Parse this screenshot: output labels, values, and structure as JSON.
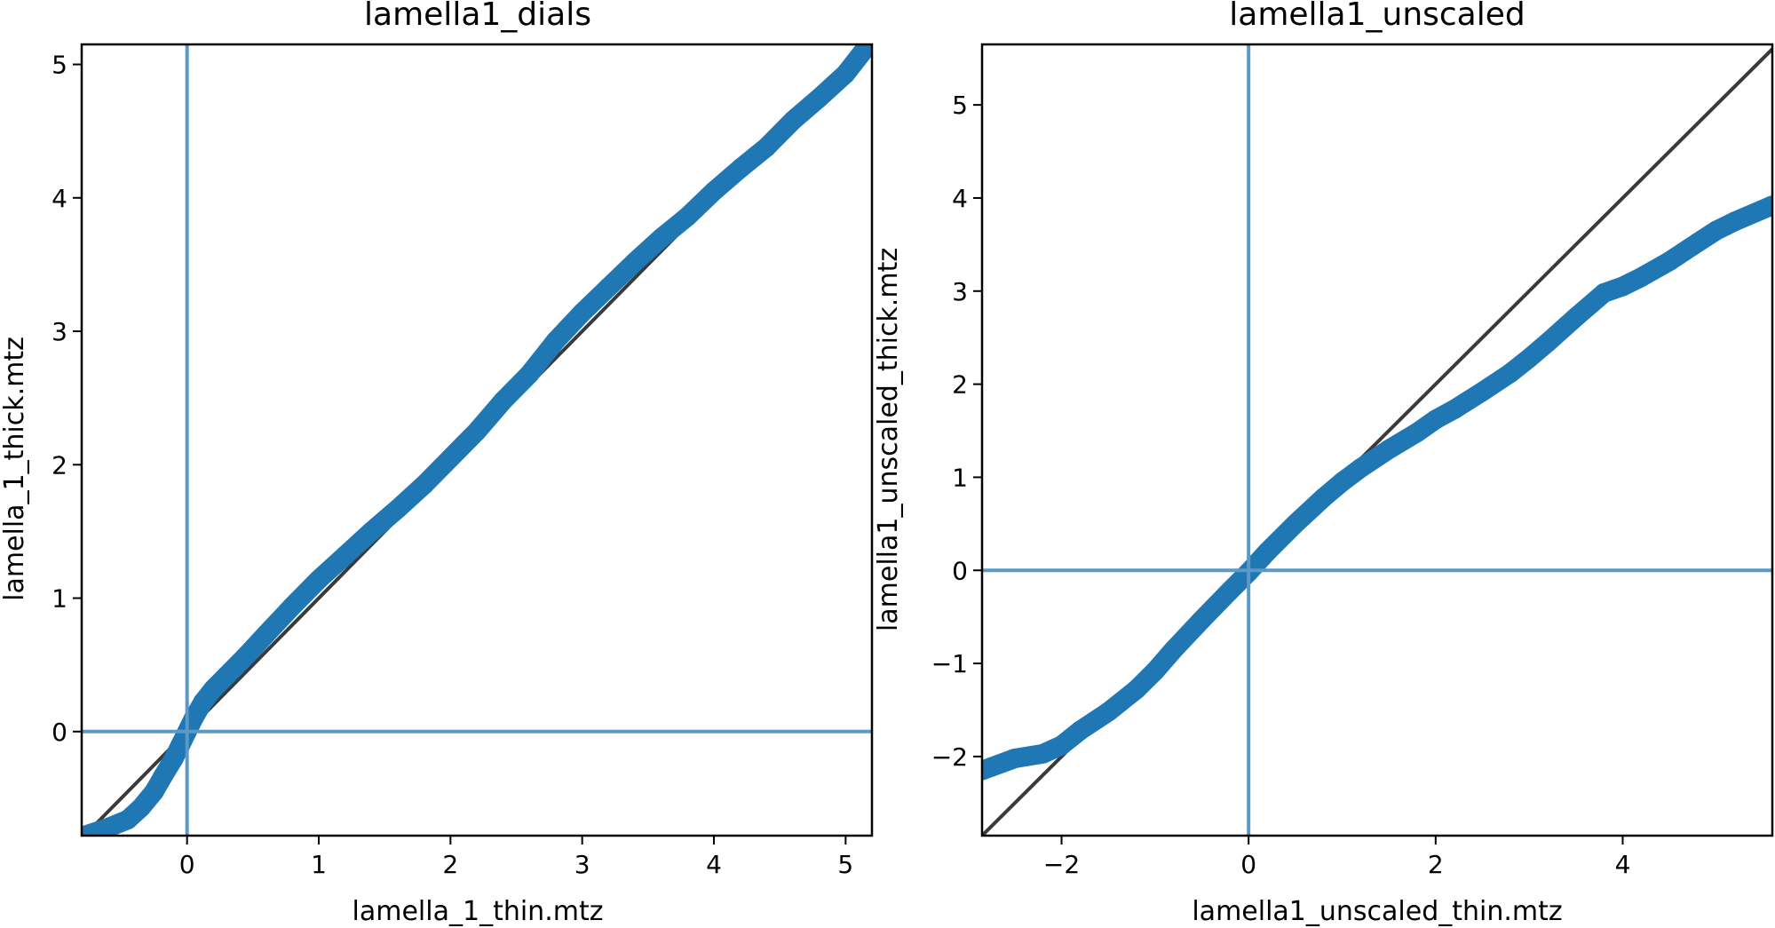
{
  "colors": {
    "series": "#1f77b4",
    "reference_lines": "#5b9ac4",
    "identity_line": "#3a3a3a",
    "axes": "#000000"
  },
  "chart_data": [
    {
      "type": "scatter",
      "title": "lamella1_dials",
      "xlabel": "lamella_1_thin.mtz",
      "ylabel": "lamella_1_thick.mtz",
      "xlim": [
        -0.8,
        5.2
      ],
      "ylim": [
        -0.78,
        5.15
      ],
      "xticks": [
        0,
        1,
        2,
        3,
        4,
        5
      ],
      "yticks": [
        0,
        1,
        2,
        3,
        4,
        5
      ],
      "xtick_labels": [
        "0",
        "1",
        "2",
        "3",
        "4",
        "5"
      ],
      "ytick_labels": [
        "0",
        "1",
        "2",
        "3",
        "4",
        "5"
      ],
      "grid": false,
      "reference_lines": {
        "x": 0,
        "y": 0
      },
      "identity_line": true,
      "series": [
        {
          "x": [
            -0.78,
            -0.6,
            -0.45,
            -0.35,
            -0.25,
            -0.18,
            -0.1,
            -0.05,
            0.0,
            0.05,
            0.12,
            0.2,
            0.3,
            0.45,
            0.6,
            0.8,
            1.0,
            1.2,
            1.4,
            1.6,
            1.8,
            2.0,
            2.2,
            2.4,
            2.6,
            2.8,
            3.0,
            3.2,
            3.4,
            3.6,
            3.8,
            4.0,
            4.2,
            4.4,
            4.6,
            4.8,
            5.0,
            5.15
          ],
          "y": [
            -0.78,
            -0.72,
            -0.66,
            -0.57,
            -0.45,
            -0.33,
            -0.2,
            -0.1,
            0.0,
            0.1,
            0.22,
            0.32,
            0.42,
            0.57,
            0.73,
            0.94,
            1.14,
            1.32,
            1.5,
            1.67,
            1.85,
            2.05,
            2.25,
            2.48,
            2.68,
            2.93,
            3.14,
            3.33,
            3.52,
            3.7,
            3.86,
            4.05,
            4.22,
            4.38,
            4.58,
            4.75,
            4.93,
            5.12
          ]
        }
      ]
    },
    {
      "type": "scatter",
      "title": "lamella1_unscaled",
      "xlabel": "lamella1_unscaled_thin.mtz",
      "ylabel": "lamella1_unscaled_thick.mtz",
      "xlim": [
        -2.85,
        5.6
      ],
      "ylim": [
        -2.85,
        5.65
      ],
      "xticks": [
        -2,
        0,
        2,
        4
      ],
      "yticks": [
        -2,
        -1,
        0,
        1,
        2,
        3,
        4,
        5
      ],
      "xtick_labels": [
        "−2",
        "0",
        "2",
        "4"
      ],
      "ytick_labels": [
        "−2",
        "−1",
        "0",
        "1",
        "2",
        "3",
        "4",
        "5"
      ],
      "grid": false,
      "reference_lines": {
        "x": 0,
        "y": 0
      },
      "identity_line": true,
      "series": [
        {
          "x": [
            -2.85,
            -2.5,
            -2.2,
            -2.0,
            -1.8,
            -1.5,
            -1.2,
            -1.0,
            -0.8,
            -0.5,
            -0.2,
            0.0,
            0.2,
            0.5,
            0.8,
            1.0,
            1.2,
            1.5,
            1.8,
            2.0,
            2.2,
            2.5,
            2.8,
            3.0,
            3.2,
            3.5,
            3.8,
            4.0,
            4.2,
            4.5,
            4.8,
            5.0,
            5.2,
            5.6
          ],
          "y": [
            -2.15,
            -2.02,
            -1.97,
            -1.88,
            -1.72,
            -1.52,
            -1.28,
            -1.08,
            -0.85,
            -0.53,
            -0.22,
            -0.02,
            0.2,
            0.5,
            0.78,
            0.95,
            1.1,
            1.3,
            1.48,
            1.62,
            1.73,
            1.92,
            2.12,
            2.28,
            2.45,
            2.72,
            2.98,
            3.05,
            3.15,
            3.32,
            3.52,
            3.65,
            3.75,
            3.92
          ]
        }
      ]
    }
  ]
}
